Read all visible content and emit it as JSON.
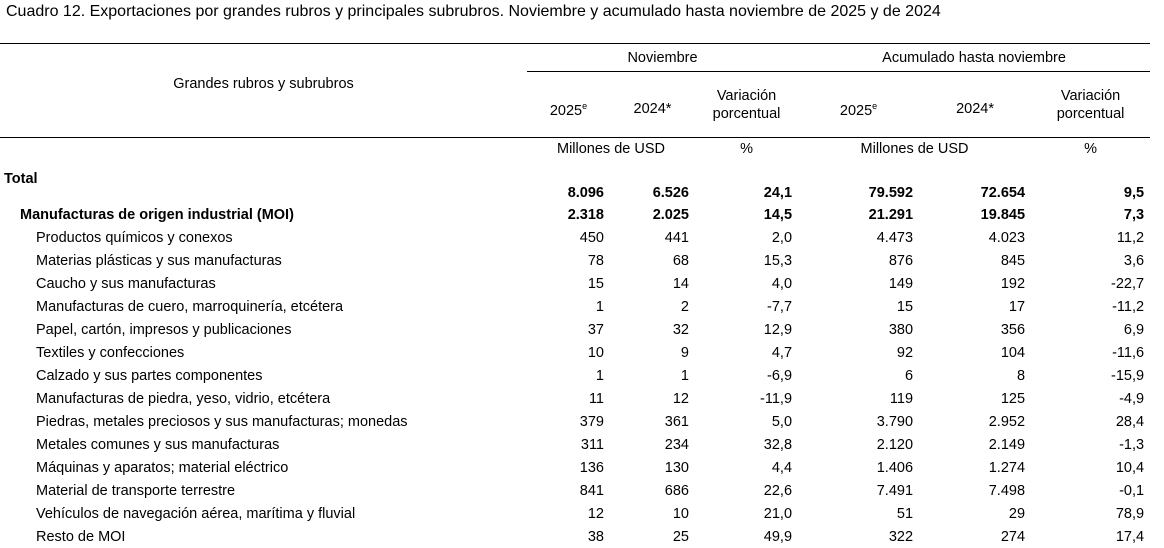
{
  "title": "Cuadro 12. Exportaciones por grandes rubros y principales subrubros. Noviembre y acumulado hasta noviembre de 2025 y de 2024",
  "header": {
    "row_label": "Grandes rubros y subrubros",
    "group1": "Noviembre",
    "group2": "Acumulado hasta noviembre",
    "y2025": "2025",
    "y2025_sup": "e",
    "y2024": "2024*",
    "variation_line1": "Variación",
    "variation_line2": "porcentual",
    "unit_usd": "Millones de USD",
    "unit_pct": "%"
  },
  "total": {
    "label": "Total",
    "values": [
      "8.096",
      "6.526",
      "24,1",
      "79.592",
      "72.654",
      "9,5"
    ]
  },
  "moi": {
    "label": "Manufacturas de origen industrial (MOI)",
    "values": [
      "2.318",
      "2.025",
      "14,5",
      "21.291",
      "19.845",
      "7,3"
    ]
  },
  "rows": [
    {
      "label": "Productos químicos y conexos",
      "values": [
        "450",
        "441",
        "2,0",
        "4.473",
        "4.023",
        "11,2"
      ]
    },
    {
      "label": "Materias plásticas y sus manufacturas",
      "values": [
        "78",
        "68",
        "15,3",
        "876",
        "845",
        "3,6"
      ]
    },
    {
      "label": "Caucho y sus manufacturas",
      "values": [
        "15",
        "14",
        "4,0",
        "149",
        "192",
        "-22,7"
      ]
    },
    {
      "label": "Manufacturas de cuero, marroquinería, etcétera",
      "values": [
        "1",
        "2",
        "-7,7",
        "15",
        "17",
        "-11,2"
      ]
    },
    {
      "label": "Papel, cartón, impresos y publicaciones",
      "values": [
        "37",
        "32",
        "12,9",
        "380",
        "356",
        "6,9"
      ]
    },
    {
      "label": "Textiles y confecciones",
      "values": [
        "10",
        "9",
        "4,7",
        "92",
        "104",
        "-11,6"
      ]
    },
    {
      "label": "Calzado y sus partes componentes",
      "values": [
        "1",
        "1",
        "-6,9",
        "6",
        "8",
        "-15,9"
      ]
    },
    {
      "label": "Manufacturas de piedra, yeso, vidrio, etcétera",
      "values": [
        "11",
        "12",
        "-11,9",
        "119",
        "125",
        "-4,9"
      ]
    },
    {
      "label": "Piedras, metales preciosos y sus manufacturas; monedas",
      "values": [
        "379",
        "361",
        "5,0",
        "3.790",
        "2.952",
        "28,4"
      ]
    },
    {
      "label": "Metales comunes y sus manufacturas",
      "values": [
        "311",
        "234",
        "32,8",
        "2.120",
        "2.149",
        "-1,3"
      ]
    },
    {
      "label": "Máquinas y aparatos; material eléctrico",
      "values": [
        "136",
        "130",
        "4,4",
        "1.406",
        "1.274",
        "10,4"
      ]
    },
    {
      "label": "Material de transporte terrestre",
      "values": [
        "841",
        "686",
        "22,6",
        "7.491",
        "7.498",
        "-0,1"
      ]
    },
    {
      "label": "Vehículos de navegación aérea, marítima y fluvial",
      "values": [
        "12",
        "10",
        "21,0",
        "51",
        "29",
        "78,9"
      ]
    },
    {
      "label": "Resto de MOI",
      "values": [
        "38",
        "25",
        "49,9",
        "322",
        "274",
        "17,4"
      ]
    }
  ]
}
